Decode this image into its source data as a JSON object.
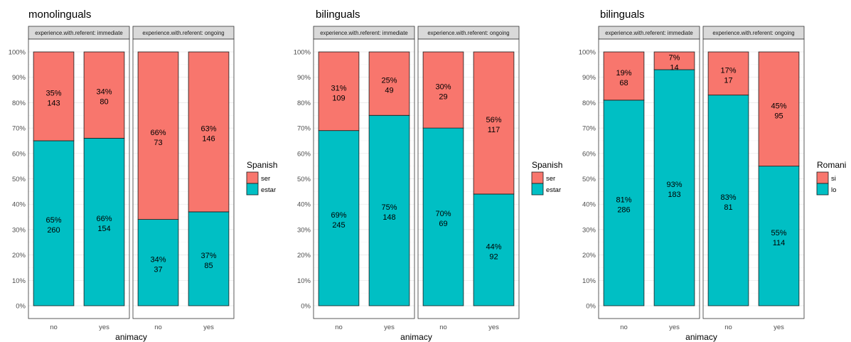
{
  "chart_data": [
    {
      "type": "bar",
      "stacked": "percent",
      "title": "monolinguals",
      "xlabel": "animacy",
      "ylabel": "",
      "ylim": [
        0,
        100
      ],
      "y_ticks": [
        "0%",
        "10%",
        "20%",
        "30%",
        "40%",
        "50%",
        "60%",
        "70%",
        "80%",
        "90%",
        "100%"
      ],
      "legend": {
        "title": "Spanish",
        "position": "right",
        "items": [
          {
            "name": "ser",
            "color": "#F8766D"
          },
          {
            "name": "estar",
            "color": "#00BFC4"
          }
        ]
      },
      "facets": [
        {
          "label": "experience.with.referent: immediate",
          "categories": [
            "no",
            "yes"
          ],
          "series": [
            {
              "name": "estar",
              "pct": [
                65,
                66
              ],
              "pct_labels": [
                "65%",
                "66%"
              ],
              "counts": [
                "260",
                "154"
              ]
            },
            {
              "name": "ser",
              "pct": [
                35,
                34
              ],
              "pct_labels": [
                "35%",
                "34%"
              ],
              "counts": [
                "143",
                "80"
              ]
            }
          ]
        },
        {
          "label": "experience.with.referent: ongoing",
          "categories": [
            "no",
            "yes"
          ],
          "series": [
            {
              "name": "estar",
              "pct": [
                34,
                37
              ],
              "pct_labels": [
                "34%",
                "37%"
              ],
              "counts": [
                "37",
                "85"
              ]
            },
            {
              "name": "ser",
              "pct": [
                66,
                63
              ],
              "pct_labels": [
                "66%",
                "63%"
              ],
              "counts": [
                "73",
                "146"
              ]
            }
          ]
        }
      ]
    },
    {
      "type": "bar",
      "stacked": "percent",
      "title": "bilinguals",
      "xlabel": "animacy",
      "ylabel": "",
      "ylim": [
        0,
        100
      ],
      "y_ticks": [
        "0%",
        "10%",
        "20%",
        "30%",
        "40%",
        "50%",
        "60%",
        "70%",
        "80%",
        "90%",
        "100%"
      ],
      "legend": {
        "title": "Spanish",
        "position": "right",
        "items": [
          {
            "name": "ser",
            "color": "#F8766D"
          },
          {
            "name": "estar",
            "color": "#00BFC4"
          }
        ]
      },
      "facets": [
        {
          "label": "experience.with.referent: immediate",
          "categories": [
            "no",
            "yes"
          ],
          "series": [
            {
              "name": "estar",
              "pct": [
                69,
                75
              ],
              "pct_labels": [
                "69%",
                "75%"
              ],
              "counts": [
                "245",
                "148"
              ]
            },
            {
              "name": "ser",
              "pct": [
                31,
                25
              ],
              "pct_labels": [
                "31%",
                "25%"
              ],
              "counts": [
                "109",
                "49"
              ]
            }
          ]
        },
        {
          "label": "experience.with.referent: ongoing",
          "categories": [
            "no",
            "yes"
          ],
          "series": [
            {
              "name": "estar",
              "pct": [
                70,
                44
              ],
              "pct_labels": [
                "70%",
                "44%"
              ],
              "counts": [
                "69",
                "92"
              ]
            },
            {
              "name": "ser",
              "pct": [
                30,
                56
              ],
              "pct_labels": [
                "30%",
                "56%"
              ],
              "counts": [
                "29",
                "117"
              ]
            }
          ]
        }
      ]
    },
    {
      "type": "bar",
      "stacked": "percent",
      "title": "bilinguals",
      "xlabel": "animacy",
      "ylabel": "",
      "ylim": [
        0,
        100
      ],
      "y_ticks": [
        "0%",
        "10%",
        "20%",
        "30%",
        "40%",
        "50%",
        "60%",
        "70%",
        "80%",
        "90%",
        "100%"
      ],
      "legend": {
        "title": "Romani",
        "position": "right",
        "items": [
          {
            "name": "si",
            "color": "#F8766D"
          },
          {
            "name": "lo",
            "color": "#00BFC4"
          }
        ]
      },
      "facets": [
        {
          "label": "experience.with.referent: immediate",
          "categories": [
            "no",
            "yes"
          ],
          "series": [
            {
              "name": "lo",
              "pct": [
                81,
                93
              ],
              "pct_labels": [
                "81%",
                "93%"
              ],
              "counts": [
                "286",
                "183"
              ]
            },
            {
              "name": "si",
              "pct": [
                19,
                7
              ],
              "pct_labels": [
                "19%",
                "7%"
              ],
              "counts": [
                "68",
                "14"
              ]
            }
          ]
        },
        {
          "label": "experience.with.referent: ongoing",
          "categories": [
            "no",
            "yes"
          ],
          "series": [
            {
              "name": "lo",
              "pct": [
                83,
                55
              ],
              "pct_labels": [
                "83%",
                "55%"
              ],
              "counts": [
                "81",
                "114"
              ]
            },
            {
              "name": "si",
              "pct": [
                17,
                45
              ],
              "pct_labels": [
                "17%",
                "45%"
              ],
              "counts": [
                "17",
                "95"
              ]
            }
          ]
        }
      ]
    }
  ]
}
